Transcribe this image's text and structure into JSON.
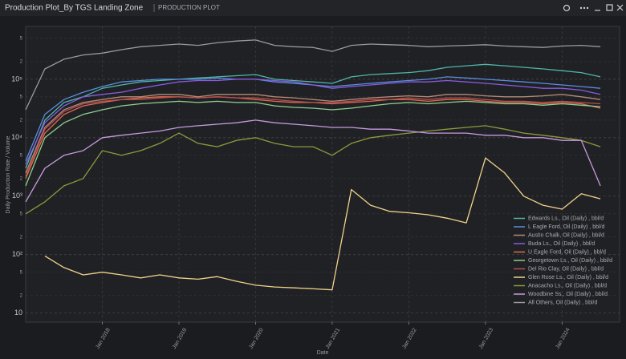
{
  "header": {
    "title": "Production Plot_By TGS Landing Zone",
    "subtitle": "PRODUCTION PLOT"
  },
  "chart_data": {
    "type": "line",
    "x_label": "Date",
    "y_label": "Daily Production Rate / Volume",
    "log_y": true,
    "grid": true,
    "legend": "lower right",
    "x": [
      "2017-01",
      "2017-04",
      "2017-07",
      "2017-10",
      "2018-01",
      "2018-04",
      "2018-07",
      "2018-10",
      "2019-01",
      "2019-04",
      "2019-07",
      "2019-10",
      "2020-01",
      "2020-04",
      "2020-07",
      "2020-10",
      "2021-01",
      "2021-04",
      "2021-07",
      "2021-10",
      "2022-01",
      "2022-04",
      "2022-07",
      "2022-10",
      "2023-01",
      "2023-04",
      "2023-07",
      "2023-10",
      "2024-01",
      "2024-04",
      "2024-07"
    ],
    "xlim": [
      "2017-01",
      "2024-10"
    ],
    "xticks": [
      {
        "value": "2018-01",
        "label": "Jan 2018"
      },
      {
        "value": "2019-01",
        "label": "Jan 2019"
      },
      {
        "value": "2020-01",
        "label": "Jan 2020"
      },
      {
        "value": "2021-01",
        "label": "Jan 2021"
      },
      {
        "value": "2022-01",
        "label": "Jan 2022"
      },
      {
        "value": "2023-01",
        "label": "Jan 2023"
      },
      {
        "value": "2024-01",
        "label": "Jan 2024"
      }
    ],
    "ylim": [
      7,
      800000
    ],
    "yticks": [
      10,
      {
        "value": 20,
        "label": "2"
      },
      {
        "value": 50,
        "label": "5"
      },
      {
        "value": 100,
        "label": "10²"
      },
      {
        "value": 200,
        "label": "2"
      },
      {
        "value": 500,
        "label": "5"
      },
      {
        "value": 1000,
        "label": "10³"
      },
      {
        "value": 2000,
        "label": "2"
      },
      {
        "value": 5000,
        "label": "5"
      },
      {
        "value": 10000,
        "label": "10⁴"
      },
      {
        "value": 20000,
        "label": "2"
      },
      {
        "value": 50000,
        "label": "5"
      },
      {
        "value": 100000,
        "label": "10⁵"
      },
      {
        "value": 200000,
        "label": "2"
      },
      {
        "value": 500000,
        "label": "5"
      }
    ],
    "series": [
      {
        "name": "Edwards Ls., Oil (Daily) , bbl/d",
        "color": "#4fb6a8",
        "values": [
          3000,
          20000,
          40000,
          50000,
          70000,
          80000,
          90000,
          95000,
          100000,
          105000,
          110000,
          115000,
          120000,
          100000,
          95000,
          90000,
          85000,
          110000,
          120000,
          125000,
          130000,
          140000,
          160000,
          170000,
          180000,
          170000,
          160000,
          150000,
          140000,
          130000,
          110000
        ]
      },
      {
        "name": "L Eagle Ford, Oil (Daily) , bbl/d",
        "color": "#5b8de0",
        "values": [
          4000,
          25000,
          45000,
          60000,
          75000,
          90000,
          95000,
          100000,
          100000,
          100000,
          105000,
          100000,
          100000,
          90000,
          85000,
          80000,
          75000,
          80000,
          85000,
          90000,
          95000,
          100000,
          110000,
          105000,
          100000,
          95000,
          90000,
          85000,
          80000,
          75000,
          70000
        ]
      },
      {
        "name": "Austin Chalk, Oil (Daily) , bbl/d",
        "color": "#b48a78",
        "values": [
          2500,
          15000,
          30000,
          40000,
          45000,
          50000,
          50000,
          55000,
          55000,
          50000,
          55000,
          55000,
          55000,
          50000,
          48000,
          45000,
          42000,
          45000,
          48000,
          50000,
          52000,
          50000,
          55000,
          55000,
          52000,
          50000,
          50000,
          52000,
          55000,
          50000,
          45000
        ]
      },
      {
        "name": "Buda Ls., Oil (Daily) , bbl/d",
        "color": "#8a5be0",
        "values": [
          3500,
          18000,
          35000,
          50000,
          55000,
          60000,
          70000,
          80000,
          90000,
          95000,
          95000,
          100000,
          100000,
          95000,
          90000,
          80000,
          70000,
          75000,
          80000,
          85000,
          90000,
          90000,
          95000,
          90000,
          85000,
          80000,
          75000,
          70000,
          70000,
          65000,
          55000
        ]
      },
      {
        "name": "U Eagle Ford, Oil (Daily) , bbl/d",
        "color": "#e06b4f",
        "values": [
          2000,
          12000,
          25000,
          35000,
          40000,
          45000,
          48000,
          50000,
          50000,
          48000,
          50000,
          48000,
          45000,
          42000,
          40000,
          40000,
          38000,
          40000,
          42000,
          45000,
          45000,
          42000,
          45000,
          45000,
          42000,
          40000,
          40000,
          38000,
          40000,
          38000,
          32000
        ]
      },
      {
        "name": "Georgetown Ls., Oil (Daily) , bbl/d",
        "color": "#8fcf8f",
        "values": [
          1500,
          10000,
          18000,
          25000,
          30000,
          35000,
          38000,
          40000,
          42000,
          40000,
          42000,
          40000,
          40000,
          35000,
          33000,
          32000,
          30000,
          32000,
          35000,
          38000,
          40000,
          38000,
          40000,
          42000,
          40000,
          38000,
          38000,
          36000,
          38000,
          36000,
          34000
        ]
      },
      {
        "name": "Del Rio Clay, Oil (Daily) , bbl/d",
        "color": "#b84f4f",
        "values": [
          2200,
          14000,
          28000,
          38000,
          42000,
          45000,
          45000,
          48000,
          50000,
          48000,
          50000,
          48000,
          48000,
          45000,
          42000,
          40000,
          40000,
          42000,
          45000,
          45000,
          48000,
          45000,
          48000,
          48000,
          45000,
          42000,
          42000,
          40000,
          42000,
          40000,
          38000
        ]
      },
      {
        "name": "Glen Rose Ls., Oil (Daily) , bbl/d",
        "color": "#f2d28a",
        "values": [
          null,
          95,
          60,
          45,
          50,
          45,
          40,
          45,
          40,
          38,
          42,
          35,
          30,
          28,
          27,
          26,
          25,
          1300,
          700,
          550,
          520,
          480,
          420,
          350,
          4500,
          2500,
          1000,
          700,
          600,
          1100,
          900
        ]
      },
      {
        "name": "Anacacho Ls., Oil (Daily) , bbl/d",
        "color": "#8c9a3c",
        "values": [
          500,
          800,
          1500,
          2000,
          6000,
          5000,
          6000,
          8000,
          12000,
          8000,
          7000,
          9000,
          10000,
          8000,
          7000,
          7000,
          5000,
          8000,
          10000,
          11000,
          12000,
          13000,
          14000,
          15000,
          16000,
          14000,
          12000,
          11000,
          10000,
          9000,
          7000
        ]
      },
      {
        "name": "Woodbine Ss., Oil (Daily) , bbl/d",
        "color": "#c79ae0",
        "values": [
          800,
          3000,
          5000,
          6000,
          10000,
          11000,
          12000,
          13000,
          15000,
          16000,
          17000,
          18000,
          20000,
          18000,
          17000,
          16000,
          15000,
          15000,
          14000,
          14000,
          13000,
          12000,
          12000,
          12000,
          11000,
          11000,
          10000,
          10000,
          9000,
          9000,
          1500
        ]
      },
      {
        "name": "All Others, Oil (Daily) , bbl/d",
        "color": "#9a9a9a",
        "values": [
          30000,
          150000,
          220000,
          260000,
          280000,
          320000,
          360000,
          380000,
          400000,
          380000,
          420000,
          450000,
          470000,
          380000,
          360000,
          350000,
          300000,
          380000,
          400000,
          390000,
          380000,
          360000,
          370000,
          380000,
          390000,
          370000,
          360000,
          350000,
          370000,
          380000,
          360000
        ]
      }
    ]
  }
}
